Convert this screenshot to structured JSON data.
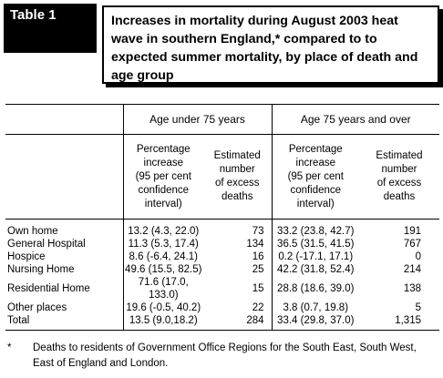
{
  "table_label": "Table 1",
  "title": "Increases in mortality during August 2003 heat wave in southern England,* compared to to expected summer mortality, by place of death and age group",
  "groups": [
    "Age under 75 years",
    "Age 75 years and over"
  ],
  "subheaders": {
    "pct": [
      "Percentage",
      "increase",
      "(95 per cent",
      "confidence",
      "interval)"
    ],
    "est": [
      "Estimated",
      "number",
      "of excess",
      "deaths"
    ]
  },
  "rows": [
    {
      "label": "Own home",
      "u75_pct": "13.2 (4.3, 22.0)",
      "u75_n": "73",
      "o75_pct": "33.2 (23.8, 42.7)",
      "o75_n": "191"
    },
    {
      "label": "General Hospital",
      "u75_pct": "11.3 (5.3, 17.4)",
      "u75_n": "134",
      "o75_pct": "36.5 (31.5, 41.5)",
      "o75_n": "767"
    },
    {
      "label": "Hospice",
      "u75_pct": "8.6 (-6.4, 24.1)",
      "u75_n": "16",
      "o75_pct": "0.2 (-17.1, 17.1)",
      "o75_n": "0"
    },
    {
      "label": "Nursing Home",
      "u75_pct": "49.6 (15.5, 82.5)",
      "u75_n": "25",
      "o75_pct": "42.2 (31.8, 52.4)",
      "o75_n": "214"
    },
    {
      "label": "Residential Home",
      "u75_pct": "71.6 (17.0, 133.0)",
      "u75_n": "15",
      "o75_pct": "28.8 (18.6, 39.0)",
      "o75_n": "138"
    },
    {
      "label": "Other places",
      "u75_pct": "19.6 (-0.5, 40.2)",
      "u75_n": "22",
      "o75_pct": "3.8 (0.7, 19.8)",
      "o75_n": "5"
    },
    {
      "label": "Total",
      "u75_pct": "13.5 (9.0,18.2)",
      "u75_n": "284",
      "o75_pct": "33.4 (29.8, 37.0)",
      "o75_n": "1,315"
    }
  ],
  "footnote": {
    "mark": "*",
    "text": "Deaths to residents of Government Office Regions for the South East, South West, East of England and London."
  }
}
